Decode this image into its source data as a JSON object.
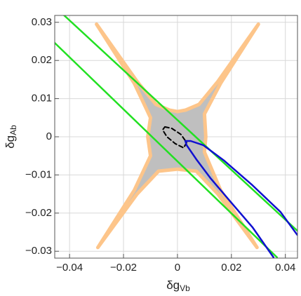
{
  "chart_data": {
    "type": "line",
    "xlabel": {
      "text": "δg",
      "sub": "Vb"
    },
    "ylabel": {
      "text": "δg",
      "sub": "Ab"
    },
    "xlim": [
      -0.0455,
      0.0445
    ],
    "ylim": [
      -0.0318,
      0.0318
    ],
    "xticks": [
      {
        "value": -0.04,
        "label": "−0.04"
      },
      {
        "value": -0.02,
        "label": "−0.02"
      },
      0,
      0.02,
      0.04
    ],
    "yticks": [
      {
        "value": -0.03,
        "label": "−0.03"
      },
      {
        "value": -0.02,
        "label": "−0.02"
      },
      {
        "value": -0.01,
        "label": "−0.01"
      },
      0,
      0.01,
      0.02,
      0.03
    ],
    "grid": true,
    "series": [
      {
        "style": "filled",
        "color": "#fdc58a",
        "fill": "#bfbfbf",
        "x": [
          -0.03,
          -0.015,
          -0.008,
          -0.003,
          0.0,
          0.003,
          0.008,
          0.015,
          0.03,
          0.016,
          0.01,
          0.0105,
          0.01,
          0.016,
          0.0295,
          0.015,
          0.007,
          0.0,
          -0.007,
          -0.015,
          -0.0295,
          -0.016,
          -0.01,
          -0.011,
          -0.01,
          -0.016,
          -0.03
        ],
        "y": [
          0.0295,
          0.0145,
          0.0085,
          0.007,
          0.0066,
          0.007,
          0.0085,
          0.0145,
          0.0295,
          0.014,
          0.006,
          0.0,
          -0.004,
          -0.014,
          -0.029,
          -0.015,
          -0.009,
          -0.0085,
          -0.009,
          -0.015,
          -0.029,
          -0.014,
          -0.005,
          0.0,
          0.005,
          0.014,
          0.0295
        ]
      },
      {
        "style": "solid",
        "color": "#22e022",
        "x": [
          -0.0423,
          0.0444
        ],
        "y": [
          0.032,
          -0.0246
        ]
      },
      {
        "style": "solid",
        "color": "#22e022",
        "x": [
          -0.0455,
          0.0369
        ],
        "y": [
          0.0246,
          -0.0316
        ]
      },
      {
        "style": "dashed",
        "color": "#000000",
        "x": [
          -0.0047,
          -0.0021,
          0.0013,
          0.0034,
          0.0023,
          -0.0008,
          -0.0039,
          -0.0055,
          -0.0047
        ],
        "y": [
          0.0026,
          0.0022,
          0.0006,
          -0.0015,
          -0.0029,
          -0.0018,
          0.0,
          0.0018,
          0.0026
        ]
      },
      {
        "style": "solid",
        "color": "#1010d0",
        "x": [
          0.0356,
          0.0278,
          0.02,
          0.0122,
          0.007,
          0.0034,
          0.0029,
          0.0049,
          0.0096,
          0.0174,
          0.0278,
          0.0382,
          0.0444
        ],
        "y": [
          -0.0316,
          -0.0237,
          -0.0173,
          -0.0108,
          -0.0059,
          -0.0022,
          -0.0011,
          -0.0011,
          -0.0022,
          -0.0063,
          -0.0127,
          -0.0197,
          -0.0257
        ]
      }
    ]
  }
}
